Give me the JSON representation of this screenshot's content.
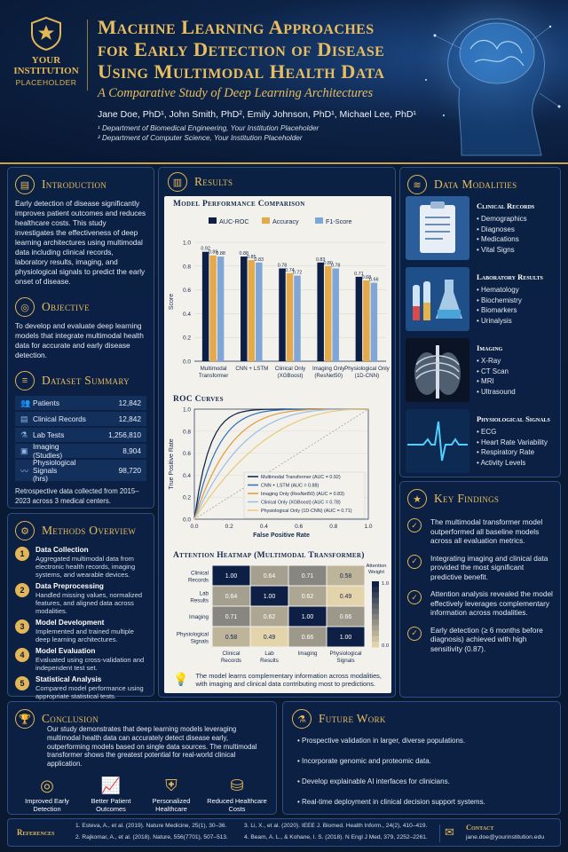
{
  "header": {
    "logo_line1": "YOUR",
    "logo_line2": "INSTITUTION",
    "logo_line3": "PLACEHOLDER",
    "title_line1": "Machine Learning Approaches",
    "title_line2": "for Early Detection of Disease",
    "title_line3": "Using Multimodal Health Data",
    "subtitle": "A Comparative Study of Deep Learning Architectures",
    "authors": "Jane Doe, PhD¹, John Smith, PhD², Emily Johnson, PhD¹, Michael Lee, PhD¹",
    "affil1": "¹ Department of Biomedical Engineering, Your Institution Placeholder",
    "affil2": "² Department of Computer Science, Your Institution Placeholder"
  },
  "introduction": {
    "title": "Introduction",
    "text": "Early detection of disease significantly improves patient outcomes and reduces healthcare costs. This study investigates the effectiveness of deep learning architectures using multimodal data including clinical records, laboratory results, imaging, and physiological signals to predict the early onset of disease."
  },
  "objective": {
    "title": "Objective",
    "text": "To develop and evaluate deep learning models that integrate multimodal health data for accurate and early disease detection."
  },
  "dataset": {
    "title": "Dataset Summary",
    "rows": [
      {
        "icon": "patients-icon",
        "label": "Patients",
        "value": "12,842"
      },
      {
        "icon": "records-icon",
        "label": "Clinical Records",
        "value": "12,842"
      },
      {
        "icon": "lab-icon",
        "label": "Lab Tests",
        "value": "1,256,810"
      },
      {
        "icon": "imaging-icon",
        "label": "Imaging (Studies)",
        "value": "8,904"
      },
      {
        "icon": "signal-icon",
        "label": "Physiological Signals",
        "label2": "(hrs)",
        "value": "98,720"
      }
    ],
    "note": "Retrospective data collected from 2015–2023 across 3 medical centers."
  },
  "methods": {
    "title": "Methods Overview",
    "steps": [
      {
        "n": "1",
        "title": "Data Collection",
        "desc": "Aggregated multimodal data from electronic health records, imaging systems, and wearable devices."
      },
      {
        "n": "2",
        "title": "Data Preprocessing",
        "desc": "Handled missing values, normalized features, and aligned data across modalities."
      },
      {
        "n": "3",
        "title": "Model Development",
        "desc": "Implemented and trained multiple deep learning architectures."
      },
      {
        "n": "4",
        "title": "Model Evaluation",
        "desc": "Evaluated using cross-validation and independent test set."
      },
      {
        "n": "5",
        "title": "Statistical Analysis",
        "desc": "Compared model performance using appropriate statistical tests."
      }
    ]
  },
  "results": {
    "title": "Results",
    "bar_title": "Model Performance Comparison",
    "roc_title": "ROC Curves",
    "heat_title": "Attention Heatmap (Multimodal Transformer)",
    "note": "The model learns complementary information across modalities, with imaging and clinical data contributing most to predictions."
  },
  "chart_data": [
    {
      "type": "bar",
      "title": "Model Performance Comparison",
      "ylabel": "Score",
      "ylim": [
        0,
        1.0
      ],
      "yticks": [
        "0.0",
        "0.2",
        "0.4",
        "0.6",
        "0.8",
        "1.0"
      ],
      "categories": [
        "Multimodal Transformer",
        "CNN + LSTM",
        "Clinical Only (XGBoost)",
        "Imaging Only (ResNet50)",
        "Physiological Only (1D-CNN)"
      ],
      "category_lines": [
        [
          "Multimodal",
          "Transformer"
        ],
        [
          "CNN + LSTM",
          ""
        ],
        [
          "Clinical Only",
          "(XGBoost)"
        ],
        [
          "Imaging Only",
          "(ResNet50)"
        ],
        [
          "Physiological Only",
          "(1D-CNN)"
        ]
      ],
      "series": [
        {
          "name": "AUC-ROC",
          "color": "#0d1f45",
          "values": [
            0.92,
            0.88,
            0.78,
            0.83,
            0.71
          ]
        },
        {
          "name": "Accuracy",
          "color": "#e3a94a",
          "values": [
            0.89,
            0.85,
            0.74,
            0.8,
            0.68
          ]
        },
        {
          "name": "F1-Score",
          "color": "#7fa6d6",
          "values": [
            0.88,
            0.83,
            0.72,
            0.78,
            0.66
          ]
        }
      ],
      "value_labels": [
        [
          "0.92",
          "0.89",
          "0.88"
        ],
        [
          "0.88",
          "0.85",
          "0.83"
        ],
        [
          "0.78",
          "0.74",
          "0.72"
        ],
        [
          "0.83",
          "0.80",
          "0.78"
        ],
        [
          "0.71",
          "0.68",
          "0.66"
        ]
      ]
    },
    {
      "type": "line",
      "title": "ROC Curves",
      "xlabel": "False Positive Rate",
      "ylabel": "True Positive Rate",
      "xlim": [
        0,
        1.0
      ],
      "ylim": [
        0,
        1.0
      ],
      "xticks": [
        "0.0",
        "0.2",
        "0.4",
        "0.6",
        "0.8",
        "1.0"
      ],
      "yticks": [
        "0.0",
        "0.2",
        "0.4",
        "0.6",
        "0.8",
        "1.0"
      ],
      "series": [
        {
          "name": "Multimodal Transformer (AUC = 0.92)",
          "color": "#0d1f45",
          "auc": 0.92
        },
        {
          "name": "CNN + LSTM (AUC = 0.88)",
          "color": "#2e6fb5",
          "auc": 0.88
        },
        {
          "name": "Imaging Only (ResNet50) (AUC = 0.83)",
          "color": "#e39a3a",
          "auc": 0.83
        },
        {
          "name": "Clinical Only (XGBoost) (AUC = 0.78)",
          "color": "#9bbde3",
          "auc": 0.78
        },
        {
          "name": "Physiological Only (1D-CNN) (AUC = 0.71)",
          "color": "#e8c97a",
          "auc": 0.71
        }
      ]
    },
    {
      "type": "heatmap",
      "title": "Attention Heatmap (Multimodal Transformer)",
      "rows": [
        [
          "Clinical",
          "Records"
        ],
        [
          "Lab",
          "Results"
        ],
        [
          "Imaging",
          ""
        ],
        [
          "Physiological",
          "Signals"
        ]
      ],
      "cols": [
        [
          "Clinical",
          "Records"
        ],
        [
          "Lab",
          "Results"
        ],
        [
          "Imaging",
          ""
        ],
        [
          "Physiological",
          "Signals"
        ]
      ],
      "values": [
        [
          1.0,
          0.64,
          0.71,
          0.58
        ],
        [
          0.64,
          1.0,
          0.62,
          0.49
        ],
        [
          0.71,
          0.62,
          1.0,
          0.66
        ],
        [
          0.58,
          0.49,
          0.66,
          1.0
        ]
      ],
      "colorbar_label": [
        "Attention",
        "Weight"
      ],
      "colorbar_ticks": [
        "1.0",
        "0.0"
      ]
    }
  ],
  "modalities": {
    "title": "Data Modalities",
    "items": [
      {
        "title": "Clinical Records",
        "bullets": [
          "Demographics",
          "Diagnoses",
          "Medications",
          "Vital Signs"
        ]
      },
      {
        "title": "Laboratory Results",
        "bullets": [
          "Hematology",
          "Biochemistry",
          "Biomarkers",
          "Urinalysis"
        ]
      },
      {
        "title": "Imaging",
        "bullets": [
          "X-Ray",
          "CT Scan",
          "MRI",
          "Ultrasound"
        ]
      },
      {
        "title": "Physiological Signals",
        "bullets": [
          "ECG",
          "Heart Rate Variability",
          "Respiratory Rate",
          "Activity Levels"
        ]
      }
    ]
  },
  "findings": {
    "title": "Key Findings",
    "items": [
      "The multimodal transformer model outperformed all baseline models across all evaluation metrics.",
      "Integrating imaging and clinical data provided the most significant predictive benefit.",
      "Attention analysis revealed the model effectively leverages complementary information across modalities.",
      "Early detection (≥ 6 months before diagnosis) achieved with high sensitivity (0.87)."
    ]
  },
  "conclusion": {
    "title": "Conclusion",
    "text": "Our study demonstrates that deep learning models leveraging multimodal health data can accurately detect disease early, outperforming models based on single data sources. The multimodal transformer shows the greatest potential for real-world clinical application.",
    "benefits": [
      {
        "icon": "target-icon",
        "l1": "Improved Early",
        "l2": "Detection"
      },
      {
        "icon": "growth-chart-icon",
        "l1": "Better Patient",
        "l2": "Outcomes"
      },
      {
        "icon": "shield-plus-icon",
        "l1": "Personalized",
        "l2": "Healthcare"
      },
      {
        "icon": "coins-icon",
        "l1": "Reduced Healthcare",
        "l2": "Costs"
      }
    ]
  },
  "future": {
    "title": "Future Work",
    "items": [
      "Prospective validation in larger, diverse populations.",
      "Incorporate genomic and proteomic data.",
      "Develop explainable AI interfaces for clinicians.",
      "Real-time deployment in clinical decision support systems."
    ]
  },
  "references": {
    "label": "References",
    "r1": "1. Esteva, A., et al. (2019). Nature Medicine, 25(1), 30–36.",
    "r2": "2. Rajkomar, A., et al. (2018). Nature, 556(7701), 507–513.",
    "r3": "3. Li, X., et al. (2020). IEEE J. Biomed. Health Inform., 24(2), 410–419.",
    "r4": "4. Beam, A. L., & Kohane, I. S. (2018). N Engl J Med, 379, 2252–2261."
  },
  "contact": {
    "label": "Contact",
    "email": "jane.doe@yourinstitution.edu"
  }
}
